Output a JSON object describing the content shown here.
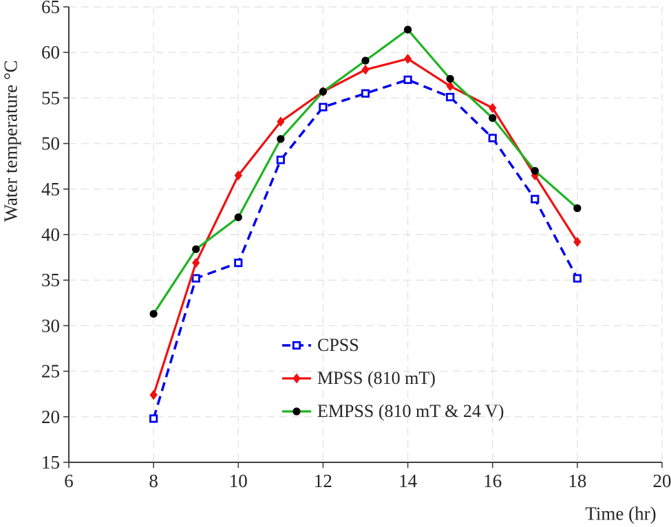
{
  "figure_title": "",
  "chart_data": {
    "type": "line",
    "x": [
      8,
      9,
      10,
      11,
      12,
      13,
      14,
      15,
      16,
      17,
      18
    ],
    "series": [
      {
        "name": "CPSS",
        "color": "#0000ee",
        "line_style": "dashed",
        "marker": "open-square",
        "values": [
          19.8,
          35.2,
          36.9,
          48.2,
          54.0,
          55.5,
          57.0,
          55.1,
          50.6,
          43.9,
          35.2
        ]
      },
      {
        "name": "MPSS (810 mT)",
        "color": "#ee1111",
        "line_style": "solid",
        "marker": "diamond",
        "values": [
          22.4,
          36.9,
          46.5,
          52.4,
          55.7,
          58.1,
          59.3,
          56.3,
          53.9,
          46.5,
          39.2
        ]
      },
      {
        "name": "EMPSS (810 mT & 24 V)",
        "color": "#1eb423",
        "line_style": "solid",
        "marker": "circle",
        "marker_color": "#000000",
        "values": [
          31.3,
          38.4,
          41.9,
          50.5,
          55.7,
          59.1,
          62.5,
          57.1,
          52.8,
          47.0,
          42.9
        ]
      }
    ],
    "xlabel": "Time (hr)",
    "ylabel": "Water temperature °C",
    "xlim": [
      6,
      20
    ],
    "ylim": [
      15,
      65
    ],
    "xticks": [
      6,
      8,
      10,
      12,
      14,
      16,
      18,
      20
    ],
    "yticks": [
      15,
      20,
      25,
      30,
      35,
      40,
      45,
      50,
      55,
      60,
      65
    ],
    "grid": true,
    "grid_style": "dashed",
    "legend_position": "inside-lower-middle",
    "style_colors": {
      "axis": "#3f3f3f",
      "grid": "#e3e3e3",
      "text": "#262626",
      "background": "#ffffff"
    }
  }
}
